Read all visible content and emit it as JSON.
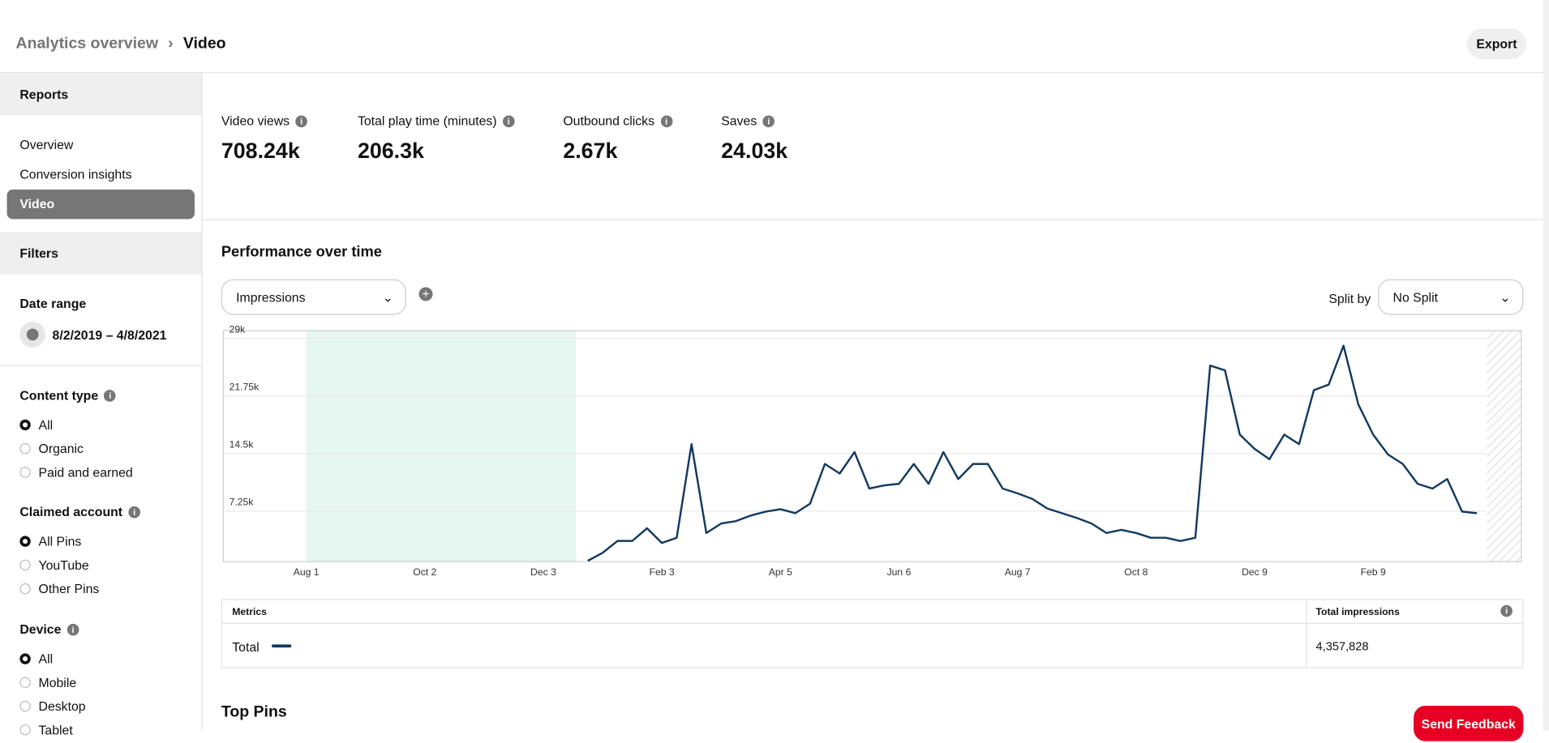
{
  "header": {
    "breadcrumb_parent": "Analytics overview",
    "breadcrumb_current": "Video",
    "export": "Export"
  },
  "sidebar": {
    "reports": "Reports",
    "nav": [
      "Overview",
      "Conversion insights",
      "Video"
    ],
    "filters": "Filters",
    "date_range_label": "Date range",
    "date_range": "8/2/2019 – 4/8/2021",
    "content_type": {
      "label": "Content type",
      "options": [
        "All",
        "Organic",
        "Paid and earned"
      ]
    },
    "claimed_account": {
      "label": "Claimed account",
      "options": [
        "All Pins",
        "YouTube",
        "Other Pins"
      ]
    },
    "device": {
      "label": "Device",
      "options": [
        "All",
        "Mobile",
        "Desktop",
        "Tablet"
      ]
    }
  },
  "metrics": [
    {
      "label": "Video views",
      "value": "708.24k"
    },
    {
      "label": "Total play time (minutes)",
      "value": "206.3k"
    },
    {
      "label": "Outbound clicks",
      "value": "2.67k"
    },
    {
      "label": "Saves",
      "value": "24.03k"
    }
  ],
  "performance": {
    "title": "Performance over time",
    "metric_select": "Impressions",
    "split_label": "Split by",
    "split_select": "No Split"
  },
  "chart_data": {
    "type": "line",
    "categories": [
      "Aug 1",
      null,
      null,
      null,
      null,
      null,
      null,
      null,
      "Oct 2",
      null,
      null,
      null,
      null,
      null,
      null,
      null,
      "Dec 3",
      null,
      null,
      null,
      null,
      null,
      null,
      null,
      "Feb 3",
      null,
      null,
      null,
      null,
      null,
      null,
      null,
      "Apr 5",
      null,
      null,
      null,
      null,
      null,
      null,
      null,
      "Jun 6",
      null,
      null,
      null,
      null,
      null,
      null,
      null,
      "Aug 7",
      null,
      null,
      null,
      null,
      null,
      null,
      null,
      "Oct 8",
      null,
      null,
      null,
      null,
      null,
      null,
      null,
      "Dec 9",
      null,
      null,
      null,
      null,
      null,
      null,
      null,
      "Feb 9",
      null,
      null,
      null,
      null,
      null,
      null,
      null
    ],
    "series": [
      {
        "name": "Total",
        "color": "#133a5e",
        "values": [
          null,
          null,
          null,
          null,
          null,
          null,
          null,
          null,
          null,
          null,
          null,
          null,
          null,
          null,
          null,
          null,
          null,
          null,
          null,
          1000,
          2000,
          3500,
          3500,
          5100,
          3250,
          3900,
          15700,
          4500,
          5700,
          6000,
          6700,
          7200,
          7500,
          7000,
          8200,
          13200,
          12000,
          14700,
          10100,
          10500,
          10700,
          13200,
          10700,
          14700,
          11300,
          13200,
          13200,
          10100,
          9500,
          8800,
          7600,
          7000,
          6400,
          5700,
          4500,
          4900,
          4500,
          3900,
          3900,
          3500,
          3900,
          25600,
          25000,
          16900,
          15100,
          13800,
          16900,
          15700,
          22500,
          23200,
          28100,
          20700,
          16900,
          14400,
          13200,
          10700,
          10100,
          11300,
          7200,
          7000
        ]
      }
    ],
    "ylim": [
      900,
      30000
    ],
    "yticks": [
      {
        "value": 7250,
        "label": "7.25k"
      },
      {
        "value": 14500,
        "label": "14.5k"
      },
      {
        "value": 21750,
        "label": "21.75k"
      },
      {
        "value": 29000,
        "label": "29k"
      }
    ],
    "grid": true
  },
  "table": {
    "header": [
      "Metrics",
      "Total impressions"
    ],
    "rows": [
      [
        "Total",
        "4,357,828"
      ]
    ]
  },
  "top_pins": "Top Pins",
  "feedback": "Send Feedback"
}
